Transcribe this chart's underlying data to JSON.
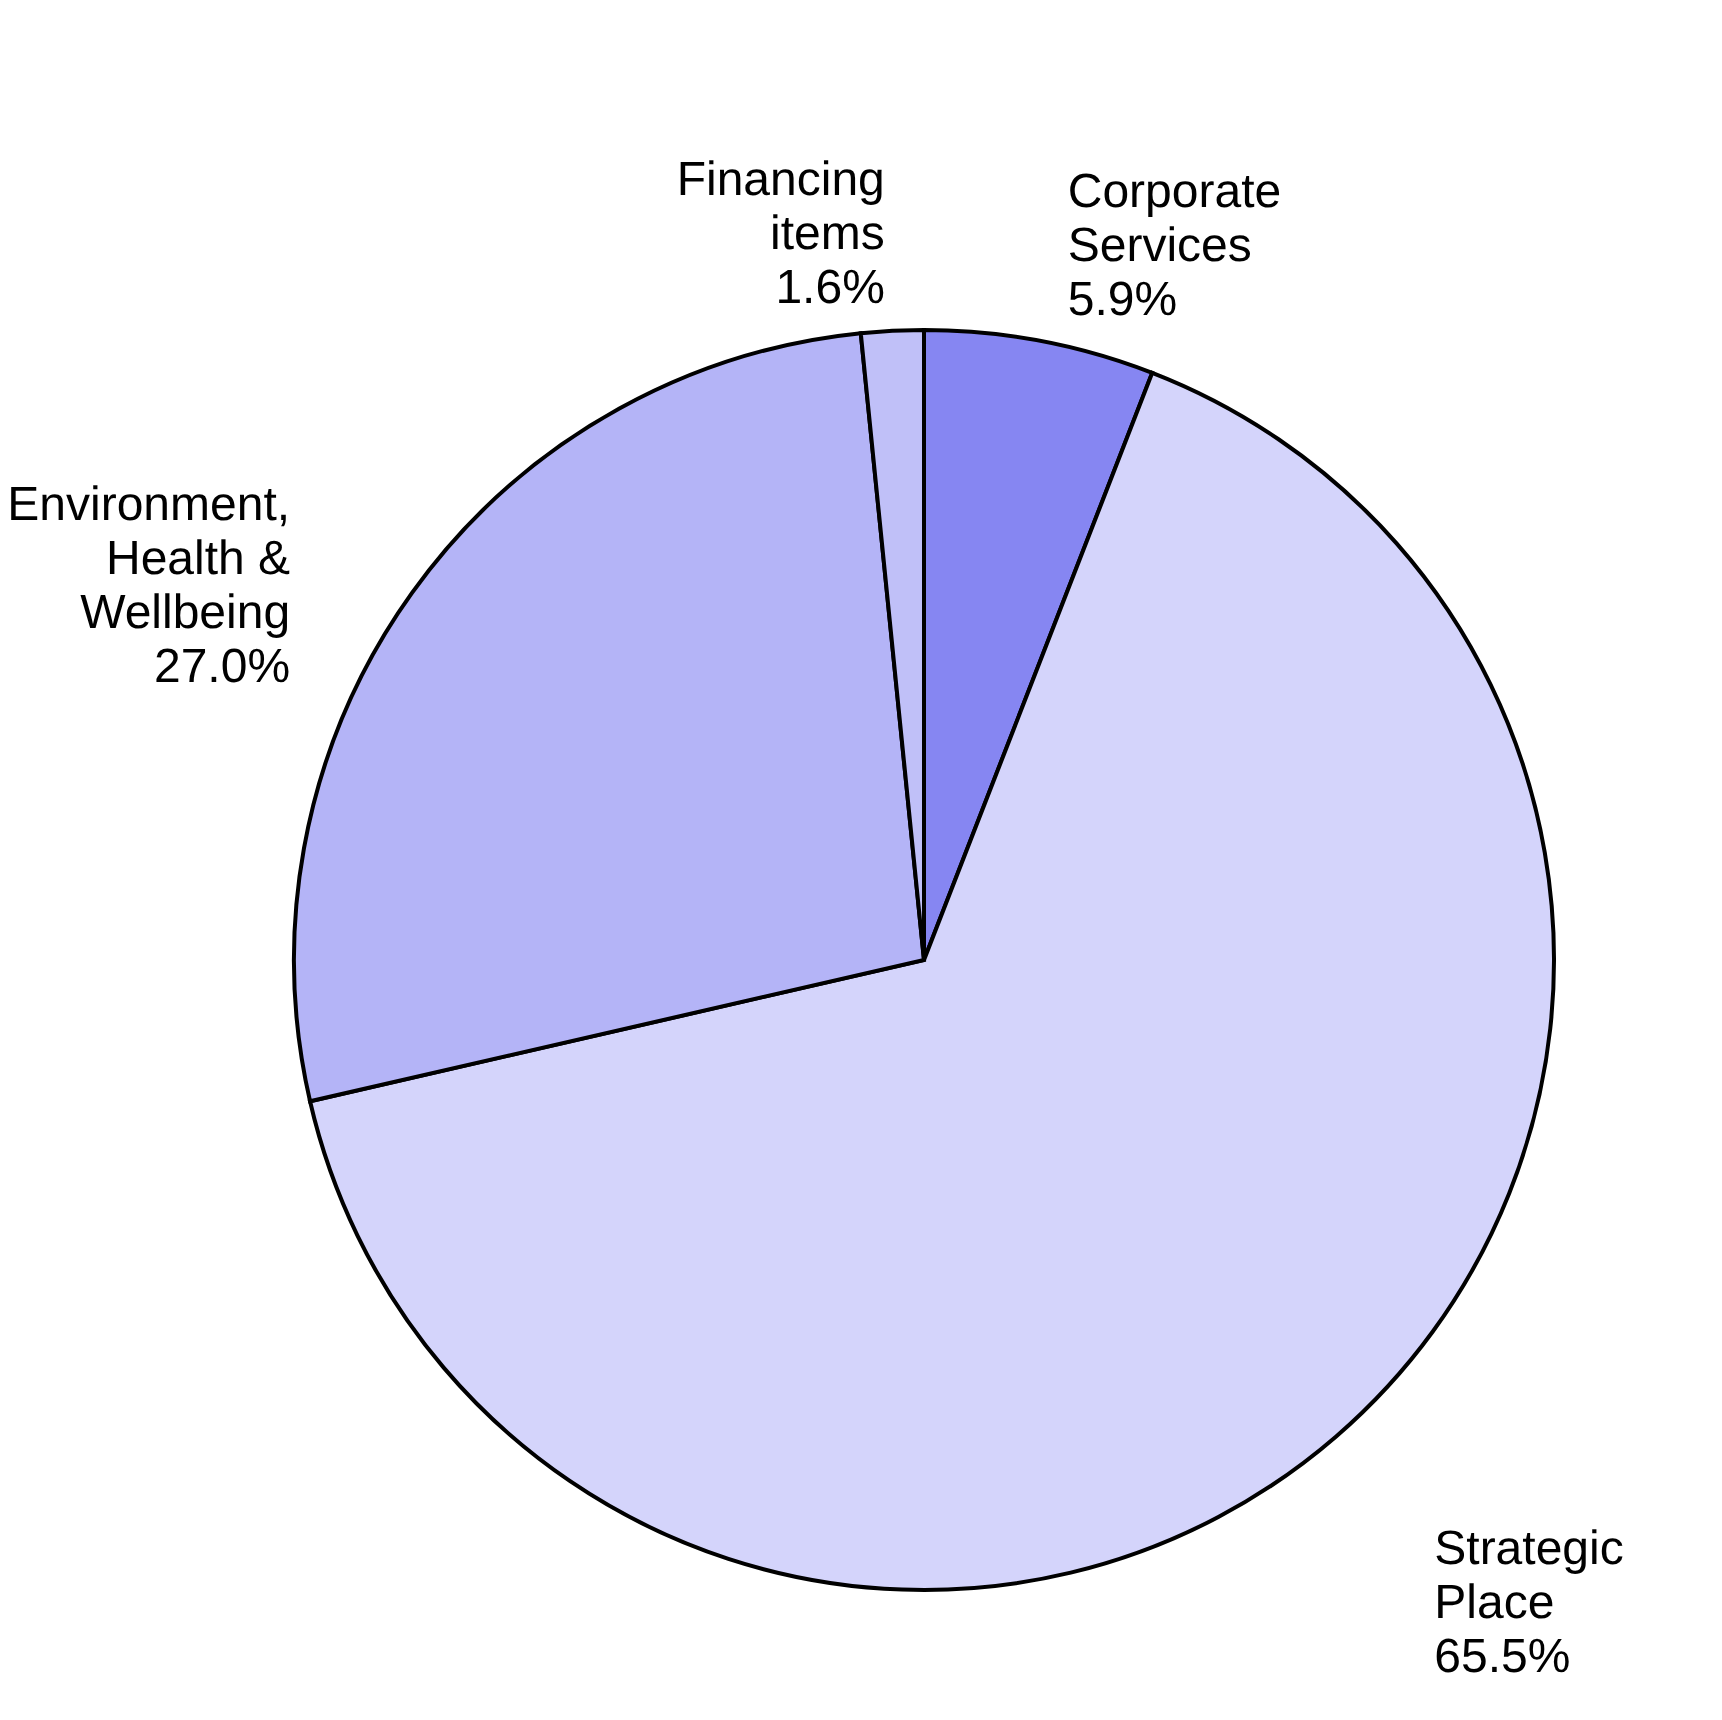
{
  "chart_data": {
    "type": "pie",
    "categories": [
      "Corporate Services",
      "Strategic Place",
      "Environment, Health & Wellbeing",
      "Financing items"
    ],
    "values": [
      5.9,
      65.5,
      27.0,
      1.6
    ],
    "value_labels": [
      "5.9%",
      "65.5%",
      "27.0%",
      "1.6%"
    ],
    "colors": [
      "#8686f2",
      "#d4d4fb",
      "#b4b4f7",
      "#c0c0f8"
    ],
    "legend": false
  }
}
